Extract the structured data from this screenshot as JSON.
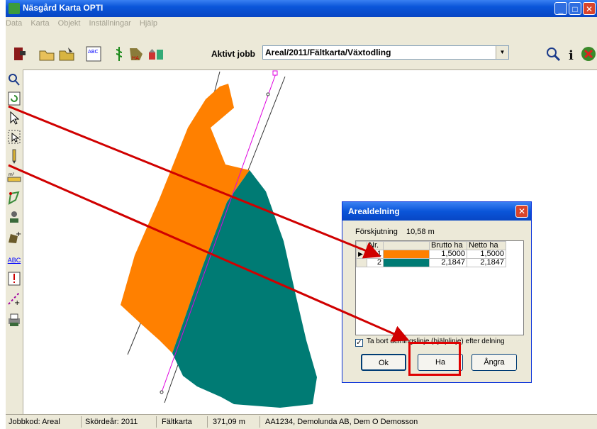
{
  "window": {
    "title": "Näsgård Karta OPTI"
  },
  "menu": [
    "Data",
    "Karta",
    "Objekt",
    "Inställningar",
    "Hjälp"
  ],
  "toolbar": {
    "active_job_label": "Aktivt jobb",
    "active_job_value": "Areal/2011/Fältkarta/Växtodling"
  },
  "left_tools": [
    "zoom-icon",
    "refresh-icon",
    "pointer-icon",
    "select-area-icon",
    "pencil-icon",
    "measure-icon",
    "polygon-icon",
    "stamp-icon",
    "add-field-icon",
    "text-icon",
    "marker-icon",
    "split-icon",
    "printer-icon"
  ],
  "left_tool_text": {
    "abc": "ABC"
  },
  "dialog": {
    "title": "Arealdelning",
    "offset_label": "Förskjutning",
    "offset_value": "10,58 m",
    "columns": [
      "Nr.",
      "",
      "Brutto ha",
      "Netto ha"
    ],
    "rows": [
      {
        "nr": "1",
        "color": "#ff8000",
        "brutto": "1,5000",
        "netto": "1,5000"
      },
      {
        "nr": "2",
        "color": "#007b74",
        "brutto": "2,1847",
        "netto": "2,1847"
      }
    ],
    "checkbox_label": "Ta bort delningslinje (hjälplinje) efter delning",
    "checkbox_checked": "✓",
    "buttons": {
      "ok": "Ok",
      "ha": "Ha",
      "angra": "Ångra"
    }
  },
  "status": {
    "jobbkod": "Jobbkod: Areal",
    "skordear": "Skördeår: 2011",
    "faltkarta": "Fältkarta",
    "distance": "371,09 m",
    "owner": "AA1234, Demolunda AB, Dem O Demosson"
  },
  "colors": {
    "field1": "#ff8000",
    "field2": "#007b74",
    "divider": "#e000e0",
    "arrow": "#d00000"
  }
}
